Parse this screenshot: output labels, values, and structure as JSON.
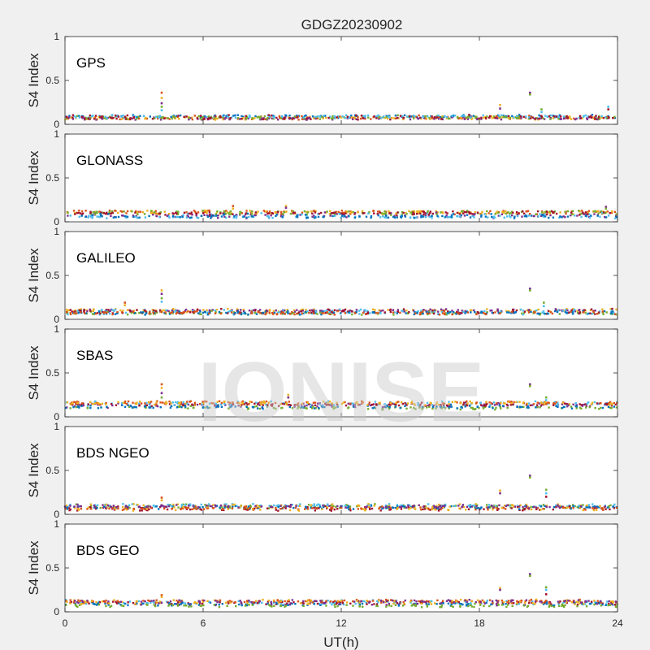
{
  "figure": {
    "title": "GDGZ20230902",
    "watermark": "IONISE",
    "xlabel": "UT(h)",
    "background": "#f0f0f0",
    "axes_background": "#ffffff"
  },
  "chart_data": {
    "type": "scatter",
    "title": "GDGZ20230902",
    "xlabel": "UT(h)",
    "ylabel": "S4 Index",
    "xlim": [
      0,
      24
    ],
    "ylim": [
      0,
      1
    ],
    "xticks": [
      "0",
      "6",
      "12",
      "18",
      "24"
    ],
    "yticks": [
      "0",
      "0.5",
      "1"
    ],
    "grid": false,
    "colors": [
      "#0072BD",
      "#D95319",
      "#EDB120",
      "#7E2F8E",
      "#77AC30",
      "#4DBEEE",
      "#A2142F"
    ],
    "panels": [
      {
        "name": "GPS",
        "baseline": [
          0.06,
          0.1
        ],
        "spikes": [
          {
            "x": 4.2,
            "y": [
              0.36,
              0.3,
              0.24,
              0.2,
              0.16
            ]
          },
          {
            "x": 18.9,
            "y": [
              0.22,
              0.18
            ]
          },
          {
            "x": 20.2,
            "y": [
              0.36,
              0.34
            ]
          },
          {
            "x": 20.7,
            "y": [
              0.17,
              0.14
            ]
          },
          {
            "x": 23.6,
            "y": [
              0.2,
              0.17
            ]
          }
        ]
      },
      {
        "name": "GLONASS",
        "baseline": [
          0.05,
          0.12
        ],
        "spikes": [
          {
            "x": 7.3,
            "y": [
              0.18,
              0.15
            ]
          },
          {
            "x": 9.6,
            "y": [
              0.18,
              0.16
            ]
          },
          {
            "x": 23.5,
            "y": [
              0.17,
              0.15
            ]
          }
        ]
      },
      {
        "name": "GALILEO",
        "baseline": [
          0.06,
          0.11
        ],
        "spikes": [
          {
            "x": 2.6,
            "y": [
              0.19,
              0.16
            ]
          },
          {
            "x": 4.2,
            "y": [
              0.33,
              0.29,
              0.24,
              0.2
            ]
          },
          {
            "x": 20.2,
            "y": [
              0.35,
              0.33
            ]
          },
          {
            "x": 20.8,
            "y": [
              0.19,
              0.15
            ]
          }
        ]
      },
      {
        "name": "SBAS",
        "baseline": [
          0.09,
          0.17
        ],
        "spikes": [
          {
            "x": 4.2,
            "y": [
              0.37,
              0.33,
              0.27,
              0.22
            ]
          },
          {
            "x": 9.7,
            "y": [
              0.25,
              0.22
            ]
          },
          {
            "x": 20.2,
            "y": [
              0.37,
              0.35
            ]
          },
          {
            "x": 20.9,
            "y": [
              0.22,
              0.19
            ]
          }
        ]
      },
      {
        "name": "BDS NGEO",
        "baseline": [
          0.05,
          0.11
        ],
        "spikes": [
          {
            "x": 4.2,
            "y": [
              0.19,
              0.16
            ]
          },
          {
            "x": 18.9,
            "y": [
              0.27,
              0.24
            ]
          },
          {
            "x": 20.2,
            "y": [
              0.44,
              0.42
            ]
          },
          {
            "x": 20.9,
            "y": [
              0.28,
              0.24,
              0.2
            ]
          }
        ]
      },
      {
        "name": "BDS GEO",
        "baseline": [
          0.06,
          0.13
        ],
        "spikes": [
          {
            "x": 4.2,
            "y": [
              0.19,
              0.17
            ]
          },
          {
            "x": 18.9,
            "y": [
              0.27,
              0.25
            ]
          },
          {
            "x": 20.2,
            "y": [
              0.43,
              0.41
            ]
          },
          {
            "x": 20.9,
            "y": [
              0.28,
              0.25,
              0.2
            ]
          }
        ]
      }
    ]
  }
}
